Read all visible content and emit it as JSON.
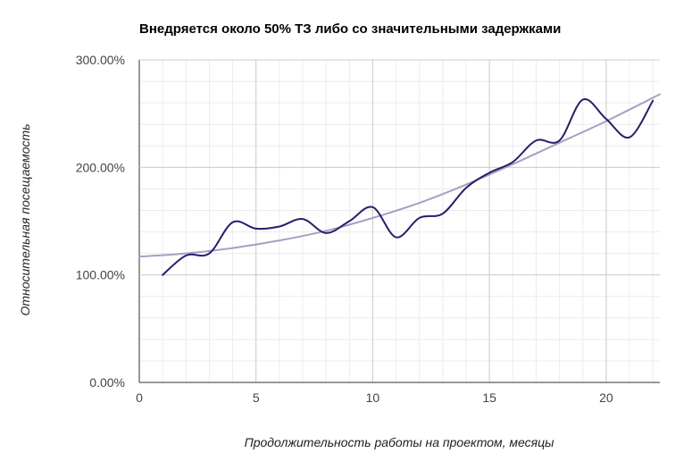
{
  "chart_data": {
    "type": "line",
    "title": "Внедряется около 50% ТЗ либо со значительными задержками",
    "xlabel": "Продолжительность работы на проектом, месяцы",
    "ylabel": "Относительная посещаемость",
    "xlim": [
      0,
      22.3
    ],
    "ylim": [
      0,
      300
    ],
    "x_ticks": [
      0,
      5,
      10,
      15,
      20
    ],
    "y_ticks": [
      0,
      100,
      200,
      300
    ],
    "y_tick_labels": [
      "0.00%",
      "100.00%",
      "200.00%",
      "300.00%"
    ],
    "x_tick_labels": [
      "0",
      "5",
      "10",
      "15",
      "20"
    ],
    "grid": true,
    "legend": "none",
    "series": [
      {
        "color": "#2e1a6b",
        "smooth": true,
        "x": [
          1,
          2,
          3,
          4,
          5,
          6,
          7,
          8,
          9,
          10,
          11,
          12,
          13,
          14,
          15,
          16,
          17,
          18,
          19,
          20,
          21,
          22
        ],
        "y": [
          100,
          118,
          120,
          149,
          143,
          145,
          152,
          139,
          150,
          163,
          135,
          153,
          157,
          181,
          195,
          205,
          225,
          225,
          263,
          245,
          228,
          262
        ]
      },
      {
        "color": "#a59fc4",
        "smooth": true,
        "x": [
          0,
          2,
          4,
          6,
          8,
          10,
          12,
          14,
          16,
          18,
          20,
          22.3
        ],
        "y": [
          117,
          120,
          125,
          132,
          141,
          153,
          167,
          184,
          203,
          223,
          243,
          268
        ]
      }
    ]
  }
}
